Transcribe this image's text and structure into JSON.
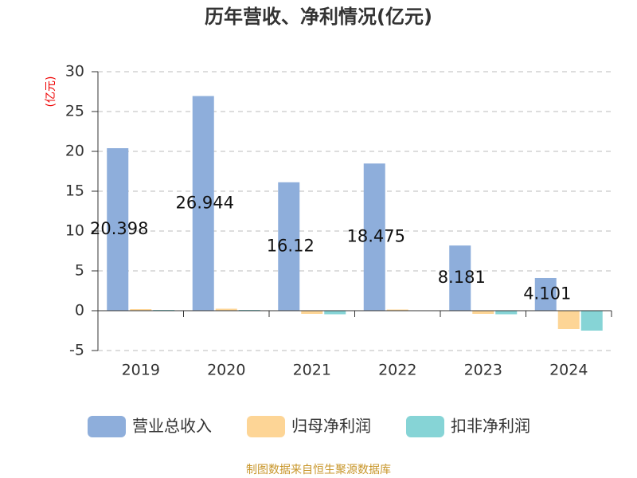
{
  "chart_data": {
    "type": "bar",
    "title": "历年营收、净利情况(亿元)",
    "y_label": "(亿元)",
    "categories": [
      "2019",
      "2020",
      "2021",
      "2022",
      "2023",
      "2024"
    ],
    "series": [
      {
        "name": "营业总收入",
        "color": "#8eaedb",
        "values": [
          20.398,
          26.944,
          16.12,
          18.475,
          8.181,
          4.101
        ]
      },
      {
        "name": "归母净利润",
        "color": "#fdd596",
        "values": [
          0.2,
          0.25,
          -0.4,
          0.15,
          -0.4,
          -2.3
        ]
      },
      {
        "name": "扣非净利润",
        "color": "#86d4d6",
        "values": [
          0.1,
          0.1,
          -0.45,
          0.05,
          -0.45,
          -2.5
        ]
      }
    ],
    "ylim": [
      -5,
      30
    ],
    "yticks": [
      -5,
      0,
      5,
      10,
      15,
      20,
      25,
      30
    ],
    "grid": true,
    "legend": "bottom",
    "source": "制图数据来自恒生聚源数据库"
  }
}
